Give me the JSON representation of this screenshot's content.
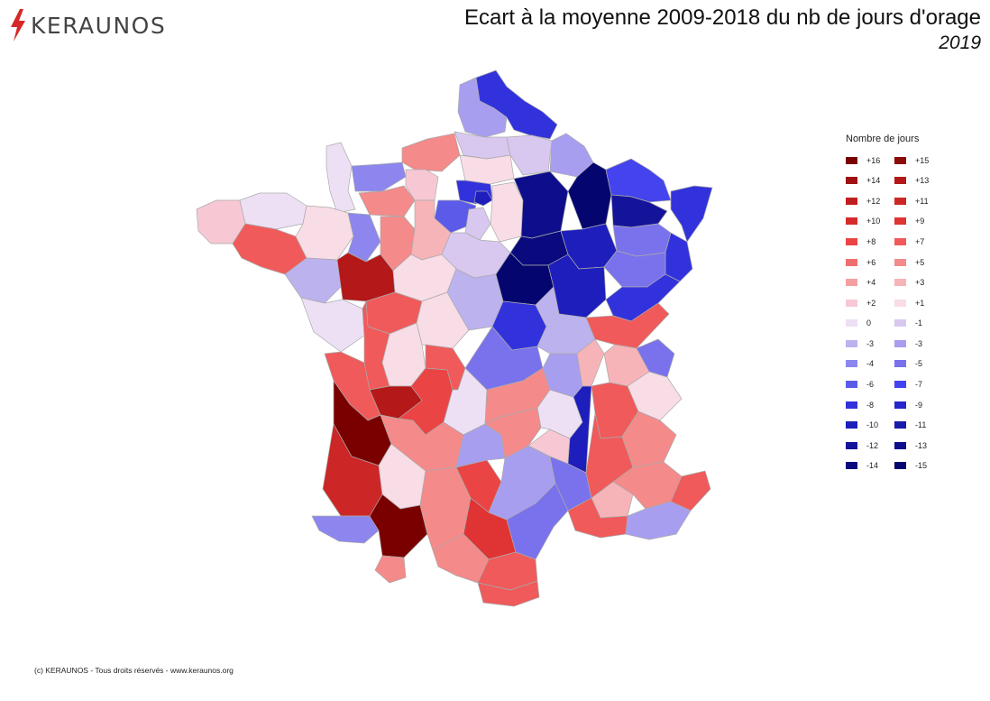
{
  "brand": {
    "name": "KERAUNOS",
    "logo_icon": "lightning-bolt-icon",
    "accent": "#d62828"
  },
  "title": "Ecart à la moyenne 2009-2018 du nb de jours d'orage",
  "subtitle": "2019",
  "legend": {
    "title": "Nombre de jours",
    "items": [
      {
        "label": "+16",
        "color": "#7a0000"
      },
      {
        "label": "+15",
        "color": "#8b0a0a"
      },
      {
        "label": "+14",
        "color": "#a01010"
      },
      {
        "label": "+13",
        "color": "#b41818"
      },
      {
        "label": "+12",
        "color": "#c01e1e"
      },
      {
        "label": "+11",
        "color": "#cc2626"
      },
      {
        "label": "+10",
        "color": "#d62b2b"
      },
      {
        "label": "+9",
        "color": "#e03333"
      },
      {
        "label": "+8",
        "color": "#ea4444"
      },
      {
        "label": "+7",
        "color": "#f05a5a"
      },
      {
        "label": "+6",
        "color": "#f06e6e"
      },
      {
        "label": "+5",
        "color": "#f48a8a"
      },
      {
        "label": "+4",
        "color": "#f5a0a0"
      },
      {
        "label": "+3",
        "color": "#f7b4b8"
      },
      {
        "label": "+2",
        "color": "#f7c8d4"
      },
      {
        "label": "+1",
        "color": "#f8dce6"
      },
      {
        "label": "0",
        "color": "#eee0f4"
      },
      {
        "label": "-1",
        "color": "#d8c8f0"
      },
      {
        "label": "-3",
        "color": "#bcb2ee"
      },
      {
        "label": "-3",
        "color": "#a89ef0"
      },
      {
        "label": "-4",
        "color": "#8c86ee"
      },
      {
        "label": "-5",
        "color": "#7a72ec"
      },
      {
        "label": "-6",
        "color": "#5c5ae8"
      },
      {
        "label": "-7",
        "color": "#4444ee"
      },
      {
        "label": "-8",
        "color": "#3232dc"
      },
      {
        "label": "-9",
        "color": "#2626cc"
      },
      {
        "label": "-10",
        "color": "#1e1ebc"
      },
      {
        "label": "-11",
        "color": "#1a1aaa"
      },
      {
        "label": "-12",
        "color": "#14149a"
      },
      {
        "label": "-13",
        "color": "#0e0e8c"
      },
      {
        "label": "-14",
        "color": "#0a0a7e"
      },
      {
        "label": "-15",
        "color": "#050570"
      }
    ]
  },
  "footer": "(c) KERAUNOS - Tous droits réservés - www.keraunos.org"
}
